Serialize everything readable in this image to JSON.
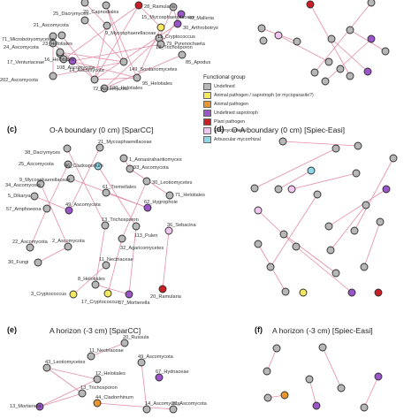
{
  "colors": {
    "edge": "#e38fa6",
    "node_stroke": "#2e2e2e",
    "undefined": "#b7b7b7",
    "animal_saprotroph": "#f3e860",
    "animal_pathogen": "#e8962c",
    "undefined_saprotroph": "#9a55c8",
    "plant_pathogen": "#c91f25",
    "ectomycorrhizal": "#f2c5ee",
    "arbuscular": "#8fd7ea"
  },
  "legend": {
    "title": "Functional group",
    "items": [
      {
        "label": "Undefined",
        "color_key": "undefined"
      },
      {
        "label": "Animal pathogen / saprotroph (or mycoparasite?)",
        "color_key": "animal_saprotroph"
      },
      {
        "label": "Animal pathogen",
        "color_key": "animal_pathogen"
      },
      {
        "label": "Undefined saprotroph",
        "color_key": "undefined_saprotroph"
      },
      {
        "label": "Plant pathogen",
        "color_key": "plant_pathogen"
      },
      {
        "label": "Ectomycorrhizal",
        "color_key": "ectomycorrhizal"
      },
      {
        "label": "Arbuscular mycorrhizal",
        "color_key": "arbuscular"
      }
    ]
  },
  "panels": [
    {
      "letter": "",
      "title": "",
      "nodes": [
        {
          "id": "a1",
          "label": "20_Capnodiales",
          "type": "undefined"
        },
        {
          "id": "a2",
          "label": "25_Dacrymyces",
          "type": "undefined"
        },
        {
          "id": "a3",
          "label": "28_Ramularia",
          "type": "plant_pathogen"
        },
        {
          "id": "a4",
          "label": "15_Mycosphaerellaceae",
          "type": "undefined"
        },
        {
          "id": "a5",
          "label": "40_Malleria",
          "type": "undefined_saprotroph"
        },
        {
          "id": "a6",
          "label": "71_Microbotryomycetes",
          "type": "undefined"
        },
        {
          "id": "a7",
          "label": "21_Ascomycota",
          "type": "undefined"
        },
        {
          "id": "a8",
          "label": "23_Helotiales",
          "type": "undefined"
        },
        {
          "id": "a9",
          "label": "24_Ascomycota",
          "type": "undefined"
        },
        {
          "id": "a10",
          "label": "16_Helotiales",
          "type": "undefined"
        },
        {
          "id": "a11",
          "label": "9_Mycosphaerellaceae",
          "type": "undefined"
        },
        {
          "id": "a12",
          "label": "11_Cryptococcus",
          "type": "animal_saprotroph"
        },
        {
          "id": "a13",
          "label": "30_Arthrobotrys",
          "type": "undefined_saprotroph"
        },
        {
          "id": "a14",
          "label": "13_Trichosporon",
          "type": "undefined"
        },
        {
          "id": "a15",
          "label": "79_Pyrenochaeta",
          "type": "undefined"
        },
        {
          "id": "a16",
          "label": "17_Venturiaceae",
          "type": "undefined"
        },
        {
          "id": "a17",
          "label": "108_Ascomycota",
          "type": "undefined"
        },
        {
          "id": "a18",
          "label": "14_Ascomycota",
          "type": "undefined_saprotroph"
        },
        {
          "id": "a19",
          "label": "85_Apodus",
          "type": "undefined"
        },
        {
          "id": "a20",
          "label": "202_Ascomycota",
          "type": "undefined"
        },
        {
          "id": "a21",
          "label": "72_Ascomycota",
          "type": "undefined"
        },
        {
          "id": "a22",
          "label": "149_Sordariomycetes",
          "type": "undefined"
        },
        {
          "id": "a23",
          "label": "190_Helotiales",
          "type": "undefined"
        },
        {
          "id": "a24",
          "label": "95_Helotiales",
          "type": "undefined"
        }
      ]
    },
    {
      "letter": "",
      "title": "",
      "nodes": [
        {
          "id": "b1",
          "label": "",
          "type": "plant_pathogen"
        },
        {
          "id": "b2",
          "label": "",
          "type": "undefined"
        },
        {
          "id": "b3",
          "label": "",
          "type": "undefined"
        },
        {
          "id": "b4",
          "label": "",
          "type": "ectomycorrhizal"
        },
        {
          "id": "b5",
          "label": "",
          "type": "undefined"
        },
        {
          "id": "b6",
          "label": "",
          "type": "undefined_saprotroph"
        },
        {
          "id": "b7",
          "label": "",
          "type": "undefined"
        },
        {
          "id": "b8",
          "label": "",
          "type": "undefined"
        },
        {
          "id": "b9",
          "label": "",
          "type": "undefined"
        },
        {
          "id": "b10",
          "label": "",
          "type": "undefined"
        },
        {
          "id": "b11",
          "label": "",
          "type": "undefined"
        },
        {
          "id": "b12",
          "label": "",
          "type": "undefined"
        },
        {
          "id": "b13",
          "label": "",
          "type": "undefined"
        },
        {
          "id": "b14",
          "label": "",
          "type": "undefined_saprotroph"
        },
        {
          "id": "b15",
          "label": "",
          "type": "undefined"
        },
        {
          "id": "b16",
          "label": "",
          "type": "undefined"
        }
      ]
    },
    {
      "letter": "(c)",
      "title": "O-A boundary (0 cm) [SparCC]",
      "nodes": [
        {
          "id": "c1",
          "label": "21_Mycosphaerellaceae",
          "type": "undefined"
        },
        {
          "id": "c2",
          "label": "38_Dacrymyces",
          "type": "undefined"
        },
        {
          "id": "c3",
          "label": "1_Aonasiraharitiomyces",
          "type": "undefined"
        },
        {
          "id": "c4",
          "label": "25_Ascomycota",
          "type": "undefined"
        },
        {
          "id": "c5",
          "label": "46_Cladosporium",
          "type": "arbuscular"
        },
        {
          "id": "c6",
          "label": "93_Ascomycota",
          "type": "undefined"
        },
        {
          "id": "c7",
          "label": "9_Mycosphaerellaceae",
          "type": "undefined"
        },
        {
          "id": "c8",
          "label": "34_Ascomycota",
          "type": "undefined"
        },
        {
          "id": "c9",
          "label": "30_Leotiomycetes",
          "type": "undefined"
        },
        {
          "id": "c10",
          "label": "5_Dikarya",
          "type": "undefined"
        },
        {
          "id": "c11",
          "label": "61_Tremellales",
          "type": "undefined"
        },
        {
          "id": "c12",
          "label": "71_Helotiales",
          "type": "undefined"
        },
        {
          "id": "c13",
          "label": "57_Amphoeona",
          "type": "undefined"
        },
        {
          "id": "c14",
          "label": "49_Ascomycota",
          "type": "undefined_saprotroph"
        },
        {
          "id": "c15",
          "label": "62_Hygrophoie",
          "type": "undefined_saprotroph"
        },
        {
          "id": "c16",
          "label": "13_Trichosporon",
          "type": "undefined"
        },
        {
          "id": "c17",
          "label": "113_Pulen",
          "type": "undefined"
        },
        {
          "id": "c18",
          "label": "36_Sebacina",
          "type": "ectomycorrhizal"
        },
        {
          "id": "c19",
          "label": "22_Ascomycota",
          "type": "undefined"
        },
        {
          "id": "c20",
          "label": "2_Ascomycota",
          "type": "undefined"
        },
        {
          "id": "c21",
          "label": "32_Agaricomycetes",
          "type": "undefined"
        },
        {
          "id": "c22",
          "label": "30_Fungi",
          "type": "undefined"
        },
        {
          "id": "c23",
          "label": "11_Nectriaceae",
          "type": "undefined"
        },
        {
          "id": "c24",
          "label": "8_Helotiales",
          "type": "undefined"
        },
        {
          "id": "c25",
          "label": "3_Cryptococcus",
          "type": "animal_saprotroph"
        },
        {
          "id": "c26",
          "label": "17_Cryptococcus",
          "type": "animal_saprotroph"
        },
        {
          "id": "c27",
          "label": "37_Mortierella",
          "type": "undefined_saprotroph"
        },
        {
          "id": "c28",
          "label": "20_Ramularia",
          "type": "plant_pathogen"
        }
      ]
    },
    {
      "letter": "(d)",
      "title": "O-A boundary (0 cm) [Spiec-Easi]",
      "nodes": [
        {
          "id": "d1",
          "label": "",
          "type": "undefined"
        },
        {
          "id": "d2",
          "label": "",
          "type": "undefined"
        },
        {
          "id": "d3",
          "label": "",
          "type": "undefined"
        },
        {
          "id": "d4",
          "label": "",
          "type": "arbuscular"
        },
        {
          "id": "d5",
          "label": "",
          "type": "undefined"
        },
        {
          "id": "d6",
          "label": "",
          "type": "undefined"
        },
        {
          "id": "d7",
          "label": "",
          "type": "undefined"
        },
        {
          "id": "d8",
          "label": "",
          "type": "undefined"
        },
        {
          "id": "d9",
          "label": "",
          "type": "ectomycorrhizal"
        },
        {
          "id": "d10",
          "label": "",
          "type": "undefined_saprotroph"
        },
        {
          "id": "d11",
          "label": "",
          "type": "undefined"
        },
        {
          "id": "d12",
          "label": "",
          "type": "undefined"
        },
        {
          "id": "d13",
          "label": "",
          "type": "ectomycorrhizal"
        },
        {
          "id": "d14",
          "label": "",
          "type": "undefined"
        },
        {
          "id": "d15",
          "label": "",
          "type": "undefined"
        },
        {
          "id": "d16",
          "label": "",
          "type": "undefined"
        },
        {
          "id": "d17",
          "label": "",
          "type": "undefined"
        },
        {
          "id": "d18",
          "label": "",
          "type": "undefined"
        },
        {
          "id": "d19",
          "label": "",
          "type": "undefined"
        },
        {
          "id": "d20",
          "label": "",
          "type": "undefined"
        },
        {
          "id": "d21",
          "label": "",
          "type": "undefined"
        },
        {
          "id": "d22",
          "label": "",
          "type": "undefined"
        },
        {
          "id": "d23",
          "label": "",
          "type": "undefined"
        },
        {
          "id": "d24",
          "label": "",
          "type": "undefined"
        },
        {
          "id": "d25",
          "label": "",
          "type": "animal_saprotroph"
        },
        {
          "id": "d26",
          "label": "",
          "type": "undefined_saprotroph"
        },
        {
          "id": "d27",
          "label": "",
          "type": "plant_pathogen"
        }
      ]
    },
    {
      "letter": "(e)",
      "title": "A horizon (-3 cm) [SparCC]",
      "nodes": [
        {
          "id": "e1",
          "label": "20_Russula",
          "type": "undefined"
        },
        {
          "id": "e2",
          "label": "11_Nectriaceae",
          "type": "undefined"
        },
        {
          "id": "e3",
          "label": "43_Leotiomycetes",
          "type": "undefined"
        },
        {
          "id": "e4",
          "label": "49_Ascomycota",
          "type": "undefined"
        },
        {
          "id": "e5",
          "label": "67_Hydnaceae",
          "type": "undefined_saprotroph"
        },
        {
          "id": "e6",
          "label": "12_Helotiales",
          "type": "undefined"
        },
        {
          "id": "e7",
          "label": "13_Trichosporon",
          "type": "undefined"
        },
        {
          "id": "e8",
          "label": "44_Cladorrhinum",
          "type": "animal_pathogen"
        },
        {
          "id": "e9",
          "label": "13_Mortierella",
          "type": "undefined_saprotroph"
        },
        {
          "id": "e10",
          "label": "14_Ascomycota",
          "type": "undefined"
        },
        {
          "id": "e11",
          "label": "20_Ascomycota",
          "type": "undefined"
        }
      ]
    },
    {
      "letter": "(f)",
      "title": "A horizon (-3 cm) [Spiec-Easi]",
      "nodes": [
        {
          "id": "f1",
          "label": "",
          "type": "undefined"
        },
        {
          "id": "f2",
          "label": "",
          "type": "undefined"
        },
        {
          "id": "f3",
          "label": "",
          "type": "undefined"
        },
        {
          "id": "f4",
          "label": "",
          "type": "undefined_saprotroph"
        },
        {
          "id": "f5",
          "label": "",
          "type": "undefined"
        },
        {
          "id": "f6",
          "label": "",
          "type": "undefined"
        },
        {
          "id": "f7",
          "label": "",
          "type": "undefined"
        },
        {
          "id": "f8",
          "label": "",
          "type": "animal_pathogen"
        },
        {
          "id": "f9",
          "label": "",
          "type": "undefined_saprotroph"
        },
        {
          "id": "f10",
          "label": "",
          "type": "undefined"
        }
      ]
    }
  ]
}
